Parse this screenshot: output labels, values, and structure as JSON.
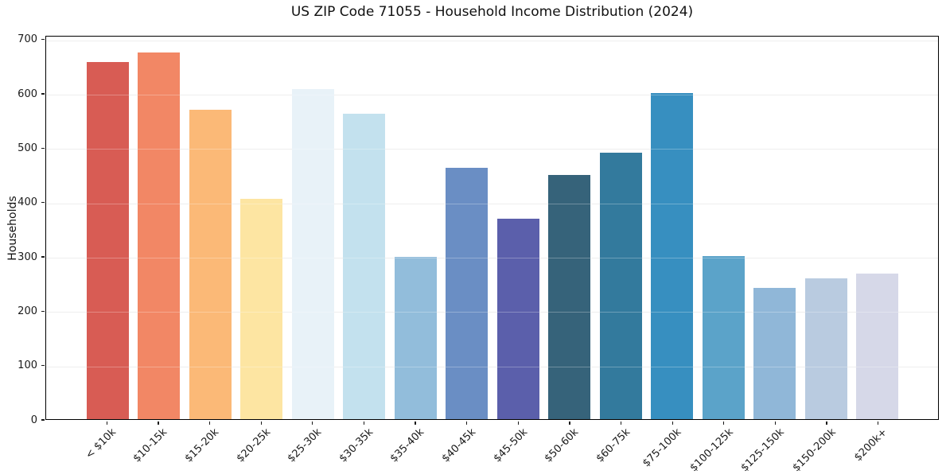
{
  "title": "US ZIP Code 71055 - Household Income Distribution (2024)",
  "chart_data": {
    "type": "bar",
    "title": "US ZIP Code 71055 - Household Income Distribution (2024)",
    "xlabel": "",
    "ylabel": "Households",
    "ylim": [
      0,
      700
    ],
    "yticks": [
      0,
      100,
      200,
      300,
      400,
      500,
      600,
      700
    ],
    "grid": "horizontal",
    "legend": "none",
    "x_tick_rotation_deg": 45,
    "categories": [
      "< $10k",
      "$10-15k",
      "$15-20k",
      "$20-25k",
      "$25-30k",
      "$30-35k",
      "$35-40k",
      "$40-45k",
      "$45-50k",
      "$50-60k",
      "$60-75k",
      "$75-100k",
      "$100-125k",
      "$125-150k",
      "$150-200k",
      "$200k+"
    ],
    "values": [
      657,
      674,
      569,
      405,
      607,
      562,
      299,
      463,
      369,
      450,
      491,
      600,
      300,
      241,
      259,
      268
    ],
    "bar_colors": [
      "#d85c54",
      "#f28765",
      "#fbb977",
      "#fde5a2",
      "#e8f2f8",
      "#c3e1ee",
      "#92bddb",
      "#6a8ec4",
      "#5b5fab",
      "#36637a",
      "#337a9d",
      "#378fc0",
      "#5ba3c9",
      "#90b7d8",
      "#b9cbe0",
      "#d6d8e8"
    ]
  },
  "colors": {
    "background": "#ffffff",
    "gridline": "#e8e8e8",
    "spine": "#000000",
    "text": "#1a1a1a"
  }
}
